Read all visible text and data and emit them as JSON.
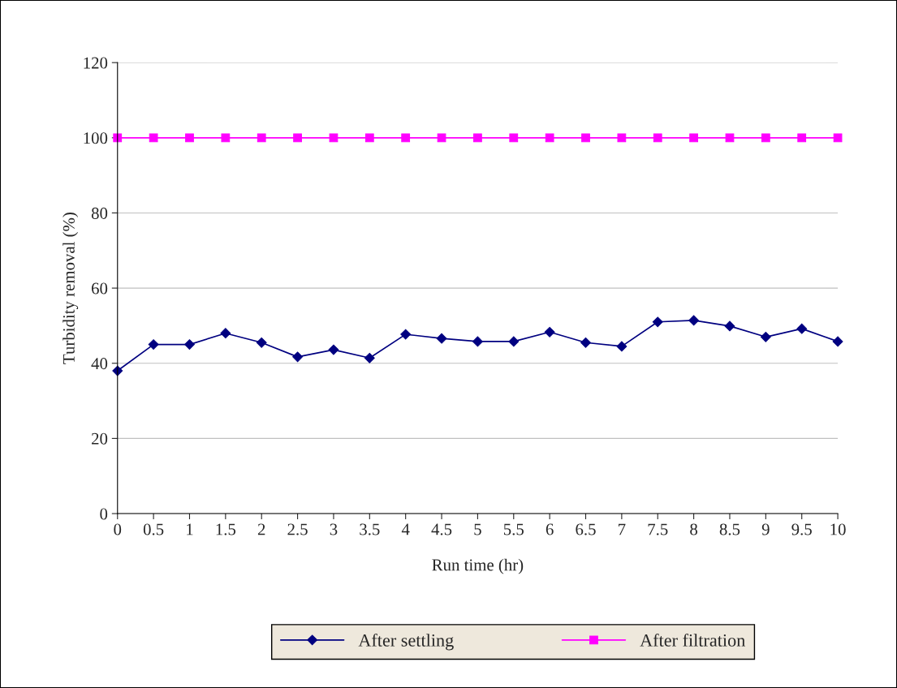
{
  "chart_data": {
    "type": "line",
    "xlabel": "Run time (hr)",
    "ylabel": "Turbidity removal (%)",
    "categories": [
      "0",
      "0.5",
      "1",
      "1.5",
      "2",
      "2.5",
      "3",
      "3.5",
      "4",
      "4.5",
      "5",
      "5.5",
      "6",
      "6.5",
      "7",
      "7.5",
      "8",
      "8.5",
      "9",
      "9.5",
      "10"
    ],
    "series": [
      {
        "name": "After settling",
        "color": "#000080",
        "marker": "diamond",
        "values": [
          38,
          45,
          45,
          48,
          45.5,
          41.7,
          43.6,
          41.4,
          47.7,
          46.6,
          45.8,
          45.8,
          48.3,
          45.5,
          44.5,
          51,
          51.4,
          49.9,
          47,
          49.2,
          45.8
        ]
      },
      {
        "name": "After filtration",
        "color": "#ff00ff",
        "marker": "square",
        "values": [
          100,
          100,
          100,
          100,
          100,
          100,
          100,
          100,
          100,
          100,
          100,
          100,
          100,
          100,
          100,
          100,
          100,
          100,
          100,
          100,
          100
        ]
      }
    ],
    "ylim": [
      0,
      120
    ],
    "yticks": [
      0,
      20,
      40,
      60,
      80,
      100,
      120
    ],
    "grid": "y",
    "legend": "bottom",
    "line_style": "solid"
  }
}
